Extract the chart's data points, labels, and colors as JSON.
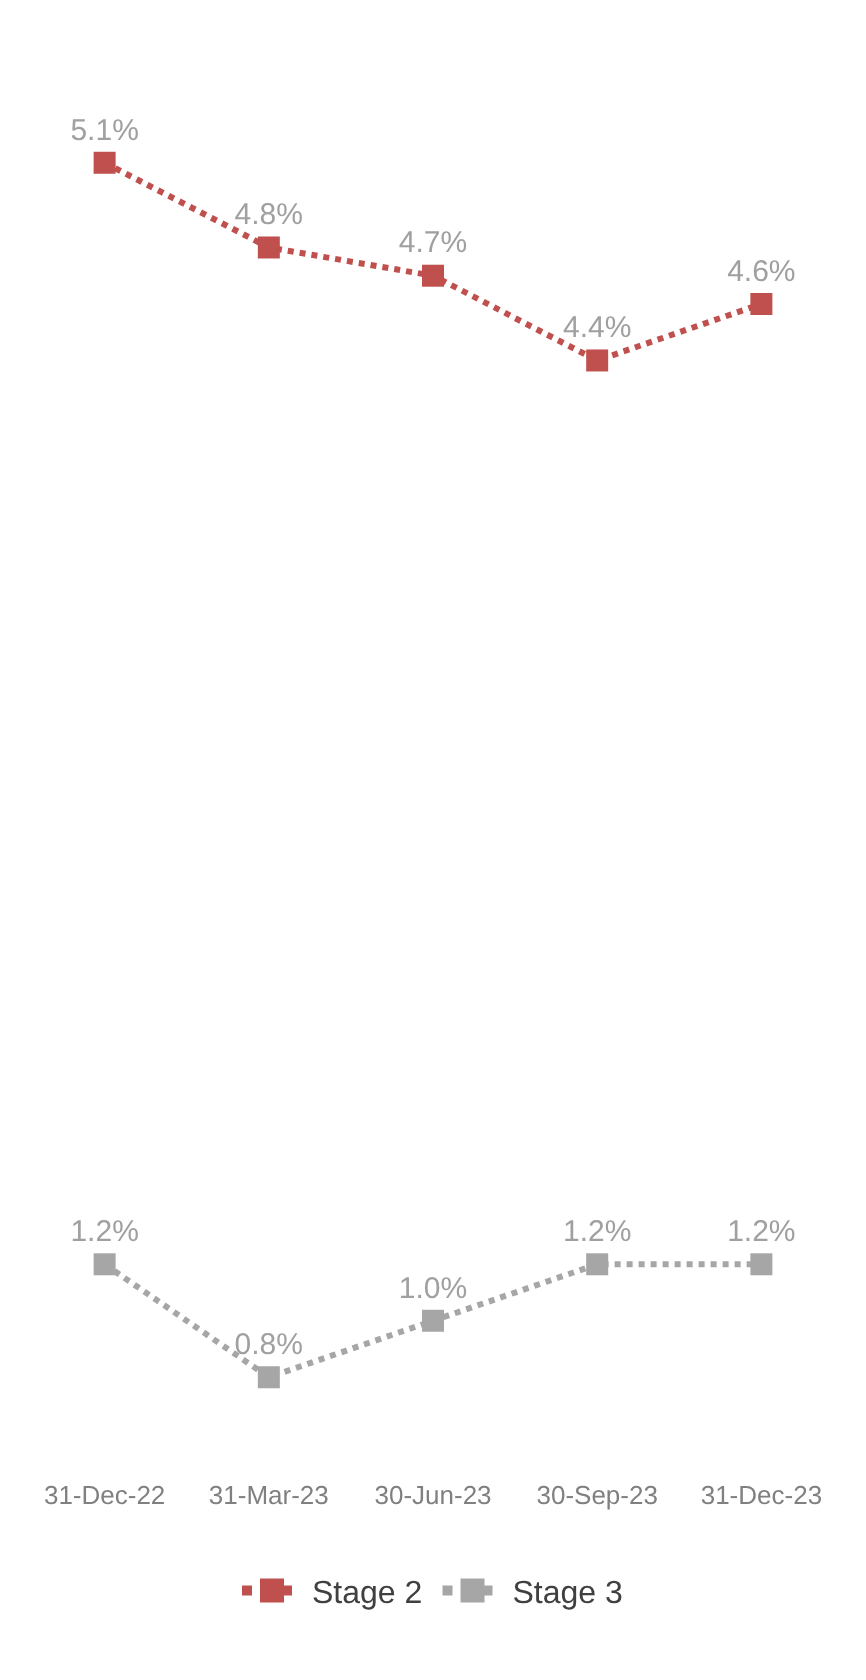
{
  "chart_data": {
    "type": "line",
    "categories": [
      "31-Dec-22",
      "31-Mar-23",
      "30-Jun-23",
      "30-Sep-23",
      "31-Dec-23"
    ],
    "series": [
      {
        "name": "Stage 2",
        "color": "#c0504d",
        "values": [
          5.1,
          4.8,
          4.7,
          4.4,
          4.6
        ],
        "value_labels": [
          "5.1%",
          "4.8%",
          "4.7%",
          "4.4%",
          "4.6%"
        ]
      },
      {
        "name": "Stage 3",
        "color": "#a6a6a6",
        "values": [
          1.2,
          0.8,
          1.0,
          1.2,
          1.2
        ],
        "value_labels": [
          "1.2%",
          "0.8%",
          "1.0%",
          "1.2%",
          "1.2%"
        ]
      }
    ],
    "grid": false,
    "legend": "bottom",
    "marker": "square",
    "line_style": "dotted"
  }
}
